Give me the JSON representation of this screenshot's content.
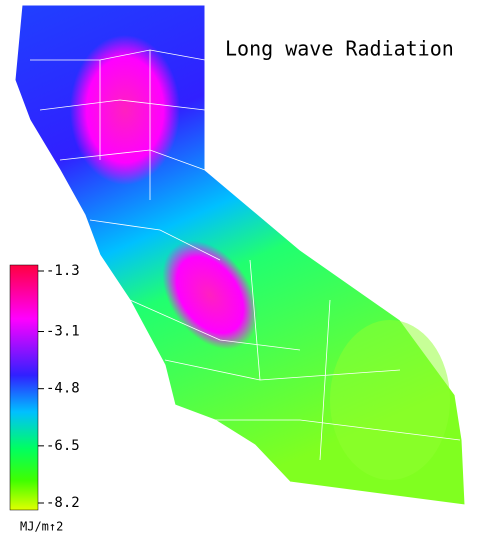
{
  "title": "Long wave Radiation",
  "colorbar": {
    "lim": [
      -8.2,
      -1.3
    ],
    "ticks": [
      -1.3,
      -3.1,
      -4.8,
      -6.5,
      -8.2
    ],
    "unit": "MJ/m↑2"
  }
}
